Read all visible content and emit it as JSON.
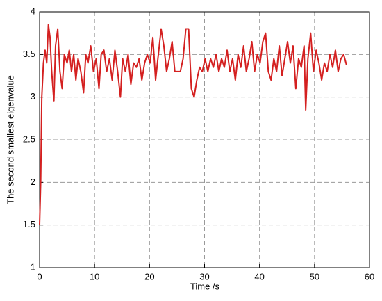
{
  "chart_data": {
    "type": "line",
    "xlabel": "Time /s",
    "ylabel": "The second smallest eigenvalue",
    "xlim": [
      0,
      60
    ],
    "xticks": [
      0,
      10,
      20,
      30,
      40,
      50,
      60
    ],
    "ylim": [
      1,
      4
    ],
    "yticks": [
      1,
      1.5,
      2,
      2.5,
      3,
      3.5,
      4
    ],
    "grid": true,
    "series": [
      {
        "color": "#d42020",
        "x": [
          0,
          0.2,
          0.4,
          0.7,
          1.0,
          1.3,
          1.6,
          1.9,
          2.2,
          2.6,
          2.9,
          3.3,
          3.7,
          4.1,
          4.5,
          5.0,
          5.4,
          5.8,
          6.2,
          6.6,
          7.0,
          7.5,
          8.0,
          8.4,
          8.8,
          9.3,
          9.8,
          10.3,
          10.8,
          11.2,
          11.7,
          12.2,
          12.7,
          13.2,
          13.7,
          14.2,
          14.7,
          15.1,
          15.6,
          16.1,
          16.6,
          17.1,
          17.6,
          18.1,
          18.6,
          19.1,
          19.6,
          20.1,
          20.6,
          21.1,
          21.6,
          22.1,
          22.6,
          23.1,
          23.6,
          24.1,
          24.6,
          25.1,
          25.6,
          26.1,
          26.6,
          27.1,
          27.6,
          28.1,
          28.6,
          29.1,
          29.6,
          30.1,
          30.6,
          31.1,
          31.6,
          32.1,
          32.6,
          33.1,
          33.6,
          34.1,
          34.6,
          35.1,
          35.6,
          36.1,
          36.6,
          37.1,
          37.6,
          38.1,
          38.6,
          39.1,
          39.6,
          40.1,
          40.6,
          41.1,
          41.6,
          42.1,
          42.6,
          43.1,
          43.6,
          44.1,
          44.6,
          45.1,
          45.6,
          46.1,
          46.6,
          47.1,
          47.6,
          48.1,
          48.4,
          48.8,
          49.3,
          49.8,
          50.3,
          50.8,
          51.3,
          51.8,
          52.3,
          52.8,
          53.3,
          53.8,
          54.3,
          54.8,
          55.3,
          55.8
        ],
        "values": [
          1.5,
          2.0,
          3.0,
          3.4,
          3.55,
          3.4,
          3.85,
          3.7,
          3.3,
          2.95,
          3.6,
          3.8,
          3.3,
          3.1,
          3.5,
          3.4,
          3.55,
          3.3,
          3.5,
          3.2,
          3.45,
          3.3,
          3.05,
          3.5,
          3.4,
          3.6,
          3.3,
          3.45,
          3.1,
          3.5,
          3.55,
          3.3,
          3.45,
          3.2,
          3.55,
          3.3,
          3.0,
          3.45,
          3.3,
          3.5,
          3.15,
          3.4,
          3.35,
          3.45,
          3.2,
          3.4,
          3.5,
          3.4,
          3.7,
          3.2,
          3.5,
          3.8,
          3.6,
          3.3,
          3.45,
          3.65,
          3.3,
          3.3,
          3.3,
          3.45,
          3.8,
          3.8,
          3.1,
          3.0,
          3.2,
          3.35,
          3.3,
          3.45,
          3.3,
          3.45,
          3.35,
          3.5,
          3.3,
          3.45,
          3.35,
          3.55,
          3.3,
          3.45,
          3.2,
          3.5,
          3.35,
          3.6,
          3.3,
          3.45,
          3.65,
          3.3,
          3.5,
          3.4,
          3.65,
          3.75,
          3.3,
          3.2,
          3.45,
          3.3,
          3.6,
          3.25,
          3.45,
          3.65,
          3.4,
          3.6,
          3.1,
          3.45,
          3.35,
          3.6,
          2.85,
          3.45,
          3.75,
          3.3,
          3.55,
          3.4,
          3.2,
          3.4,
          3.3,
          3.5,
          3.35,
          3.55,
          3.3,
          3.45,
          3.5,
          3.38
        ]
      }
    ]
  }
}
